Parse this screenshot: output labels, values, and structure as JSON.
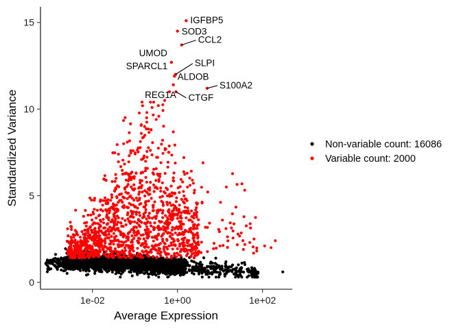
{
  "chart_data": {
    "type": "scatter",
    "title": "",
    "xlabel": "Average Expression",
    "ylabel": "Standardized Variance",
    "x_scale": "log10",
    "xlim": [
      0.0006,
      500
    ],
    "ylim": [
      -0.4,
      15.9
    ],
    "x_ticks": [
      {
        "value": 0.01,
        "label": "1e-02"
      },
      {
        "value": 1,
        "label": "1e+00"
      },
      {
        "value": 100,
        "label": "1e+02"
      }
    ],
    "y_ticks": [
      {
        "value": 0,
        "label": "0"
      },
      {
        "value": 5,
        "label": "5"
      },
      {
        "value": 10,
        "label": "10"
      },
      {
        "value": 15,
        "label": "15"
      }
    ],
    "grid": false,
    "legend_position": "right",
    "series": [
      {
        "name": "Non-variable count: 16086",
        "color": "#000000"
      },
      {
        "name": "Variable count: 2000",
        "color": "#ff0000"
      }
    ],
    "labeled_points": [
      {
        "gene": "IGFBP5",
        "x": 1.6,
        "y": 15.1
      },
      {
        "gene": "SOD3",
        "x": 1.0,
        "y": 14.5
      },
      {
        "gene": "CCL2",
        "x": 1.25,
        "y": 13.7
      },
      {
        "gene": "UMOD",
        "x": 0.72,
        "y": 12.7
      },
      {
        "gene": "SLPI",
        "x": 0.9,
        "y": 12.0
      },
      {
        "gene": "SPARCL1",
        "x": 0.85,
        "y": 11.9
      },
      {
        "gene": "ALDOB",
        "x": 0.8,
        "y": 11.4
      },
      {
        "gene": "S100A2",
        "x": 5.0,
        "y": 11.2
      },
      {
        "gene": "CTGF",
        "x": 0.92,
        "y": 11.0
      },
      {
        "gene": "REG1A",
        "x": 0.65,
        "y": 11.0
      }
    ]
  }
}
